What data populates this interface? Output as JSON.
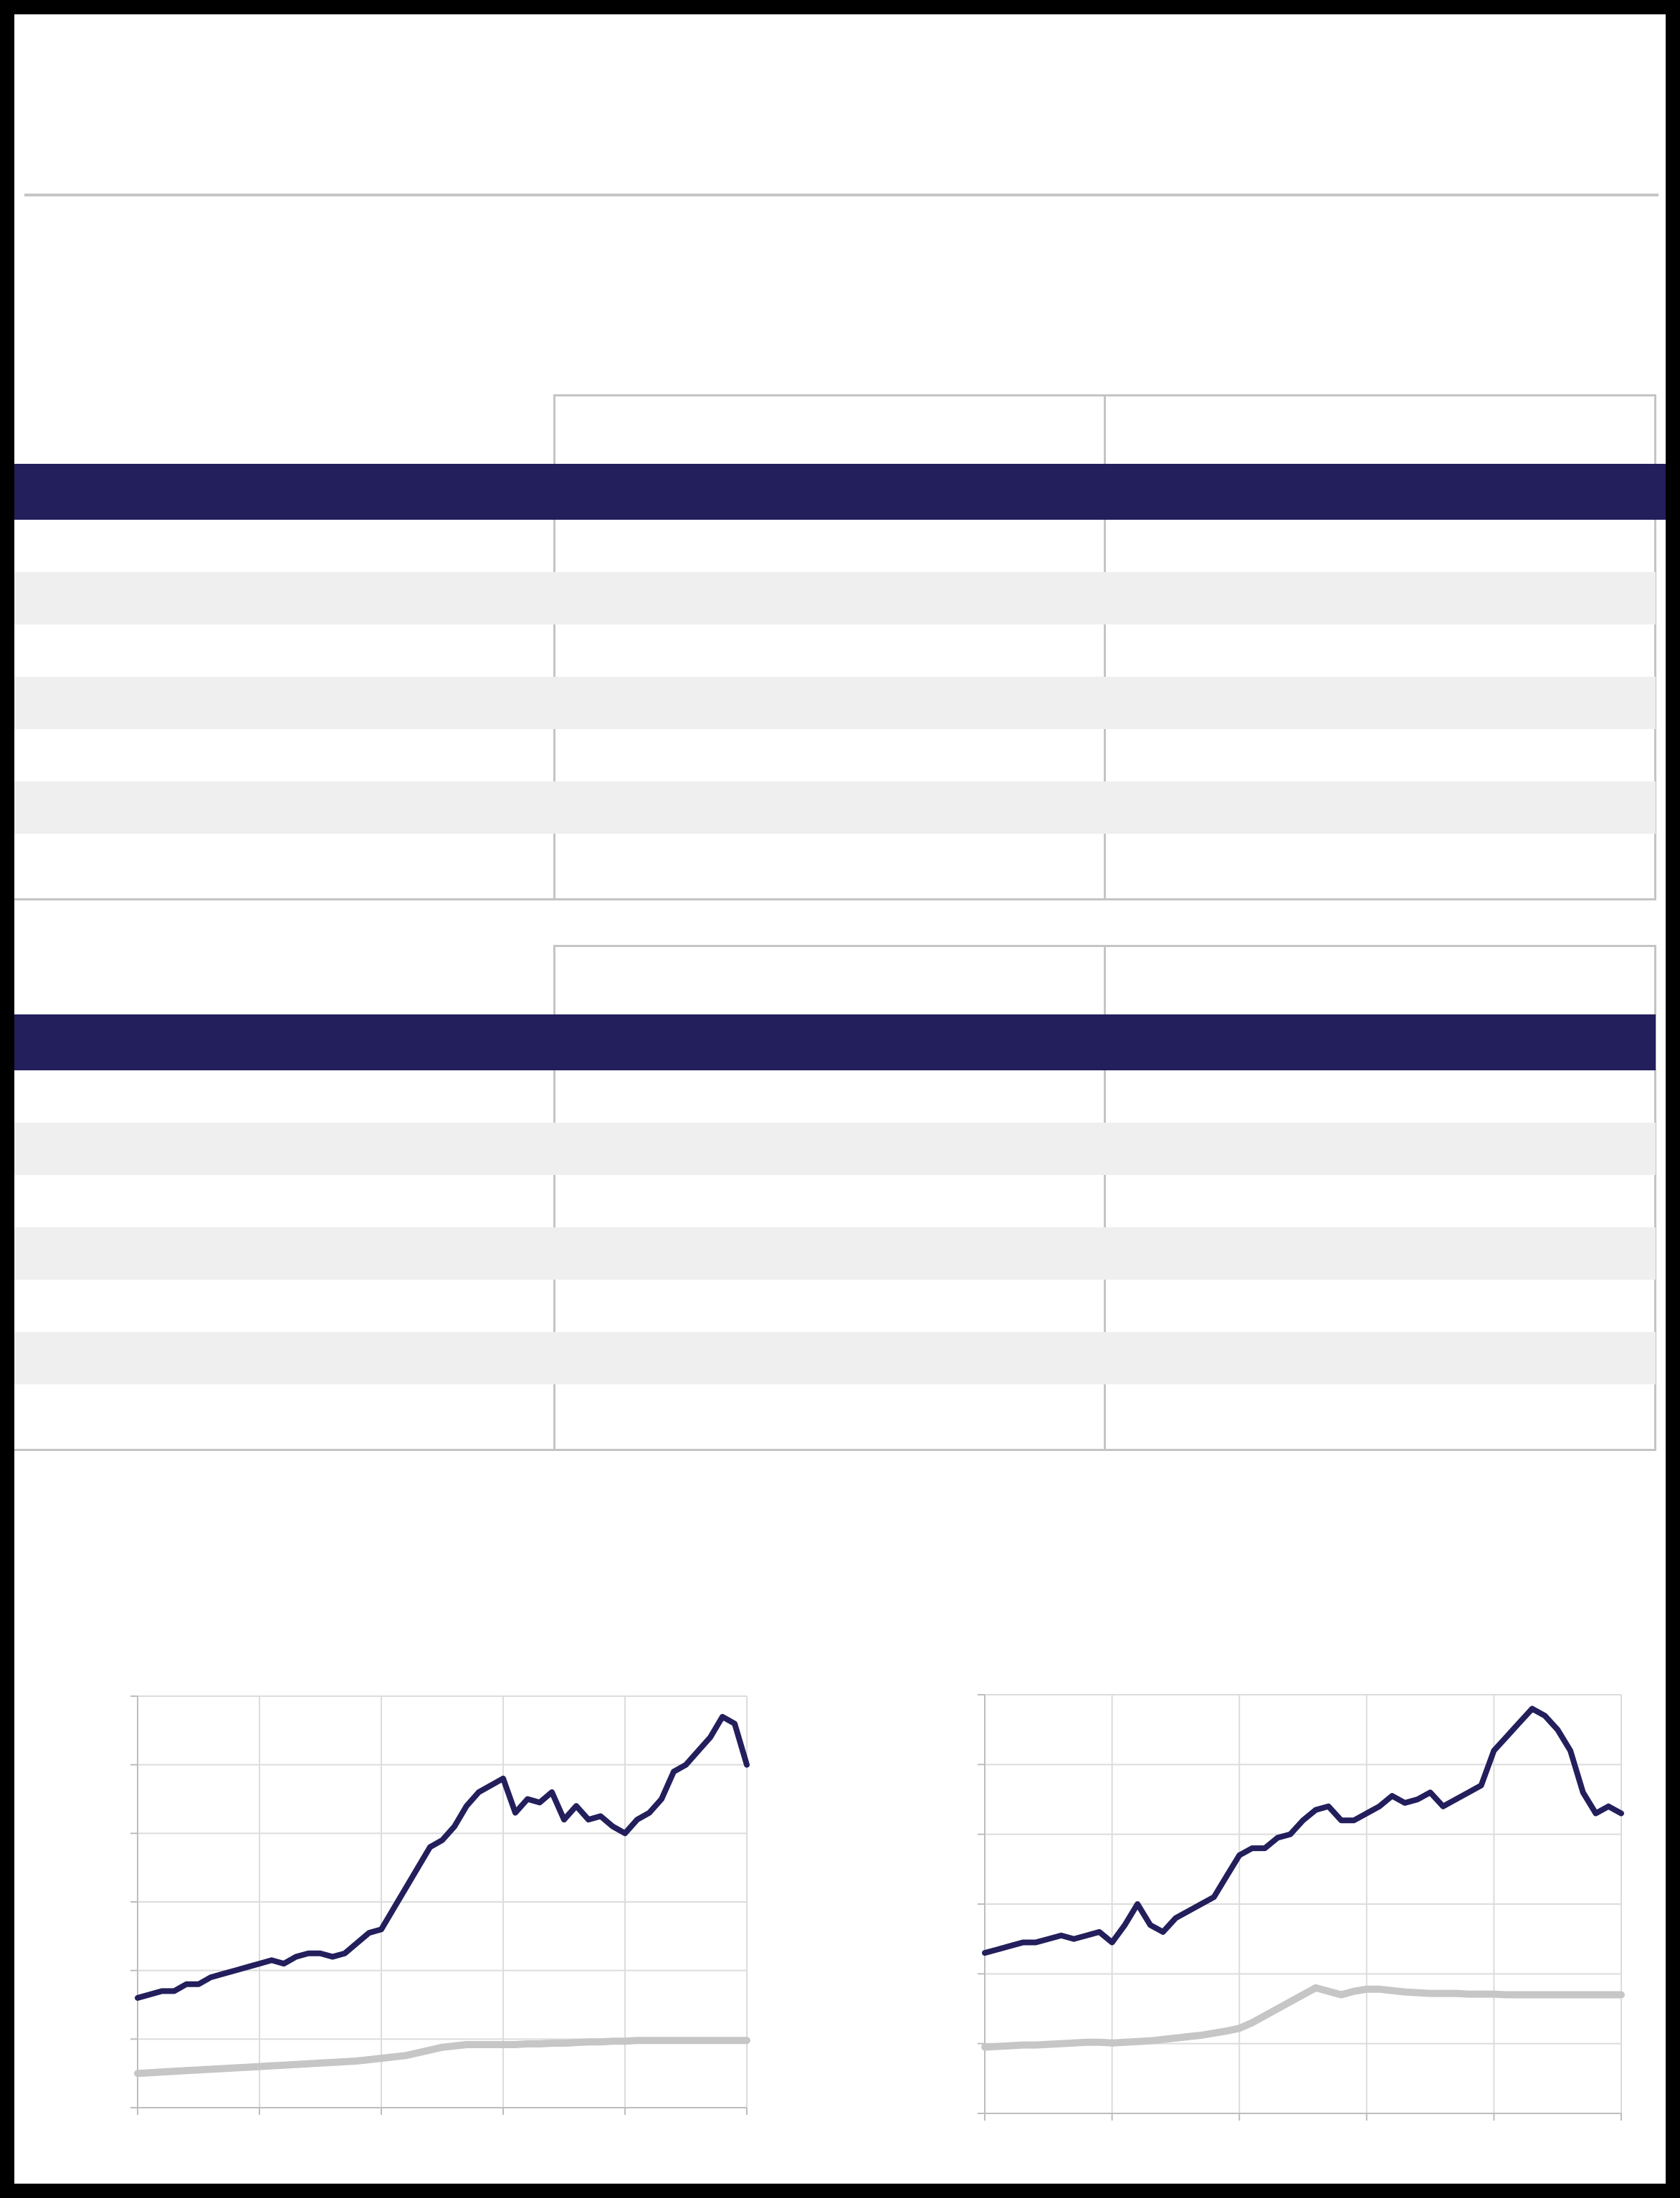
{
  "tables": [
    {
      "row_count": 7
    },
    {
      "row_count": 7
    }
  ],
  "chart_data": [
    {
      "type": "line",
      "title": "",
      "xlabel": "",
      "ylabel": "",
      "grid": true,
      "x": [
        0,
        2,
        4,
        6,
        8,
        10,
        12,
        14,
        16,
        18,
        20,
        22,
        24,
        26,
        28,
        30,
        32,
        34,
        36,
        38,
        40,
        42,
        44,
        46,
        48,
        50,
        52,
        54,
        56,
        58,
        60,
        62,
        64,
        66,
        68,
        70,
        72,
        74,
        76,
        78,
        80,
        82,
        84,
        86,
        88,
        90,
        92,
        94,
        96,
        98,
        100
      ],
      "xlim": [
        0,
        100
      ],
      "ylim": [
        0,
        600
      ],
      "series": [
        {
          "color": "#231f5c",
          "values": [
            160,
            165,
            170,
            170,
            180,
            180,
            190,
            195,
            200,
            205,
            210,
            215,
            210,
            220,
            225,
            225,
            220,
            225,
            240,
            255,
            260,
            290,
            320,
            350,
            380,
            390,
            410,
            440,
            460,
            470,
            480,
            430,
            450,
            445,
            460,
            420,
            440,
            420,
            425,
            410,
            400,
            420,
            430,
            450,
            490,
            500,
            520,
            540,
            570,
            560,
            500
          ]
        },
        {
          "color": "#c6c6c6",
          "values": [
            50,
            51,
            52,
            53,
            54,
            55,
            56,
            57,
            58,
            59,
            60,
            61,
            62,
            63,
            64,
            65,
            66,
            67,
            68,
            70,
            72,
            74,
            76,
            80,
            84,
            88,
            90,
            92,
            92,
            92,
            92,
            92,
            93,
            93,
            94,
            94,
            95,
            96,
            96,
            97,
            97,
            98,
            98,
            98,
            98,
            98,
            98,
            98,
            98,
            98,
            98
          ]
        }
      ]
    },
    {
      "type": "line",
      "title": "",
      "xlabel": "",
      "ylabel": "",
      "grid": true,
      "x": [
        0,
        2,
        4,
        6,
        8,
        10,
        12,
        14,
        16,
        18,
        20,
        22,
        24,
        26,
        28,
        30,
        32,
        34,
        36,
        38,
        40,
        42,
        44,
        46,
        48,
        50,
        52,
        54,
        56,
        58,
        60,
        62,
        64,
        66,
        68,
        70,
        72,
        74,
        76,
        78,
        80,
        82,
        84,
        86,
        88,
        90,
        92,
        94,
        96,
        98,
        100
      ],
      "xlim": [
        0,
        100
      ],
      "ylim": [
        0,
        600
      ],
      "series": [
        {
          "color": "#231f5c",
          "values": [
            230,
            235,
            240,
            245,
            245,
            250,
            255,
            250,
            255,
            260,
            245,
            270,
            300,
            270,
            260,
            280,
            290,
            300,
            310,
            340,
            370,
            380,
            380,
            395,
            400,
            420,
            435,
            440,
            420,
            420,
            430,
            440,
            455,
            445,
            450,
            460,
            440,
            450,
            460,
            470,
            520,
            540,
            560,
            580,
            570,
            550,
            520,
            460,
            430,
            440,
            430
          ]
        },
        {
          "color": "#c6c6c6",
          "values": [
            95,
            96,
            97,
            98,
            98,
            99,
            100,
            101,
            102,
            102,
            101,
            102,
            103,
            104,
            106,
            108,
            110,
            112,
            115,
            118,
            122,
            130,
            140,
            150,
            160,
            170,
            180,
            175,
            170,
            175,
            178,
            178,
            176,
            174,
            173,
            172,
            172,
            172,
            171,
            171,
            171,
            170,
            170,
            170,
            170,
            170,
            170,
            170,
            170,
            170,
            170
          ]
        }
      ]
    }
  ]
}
